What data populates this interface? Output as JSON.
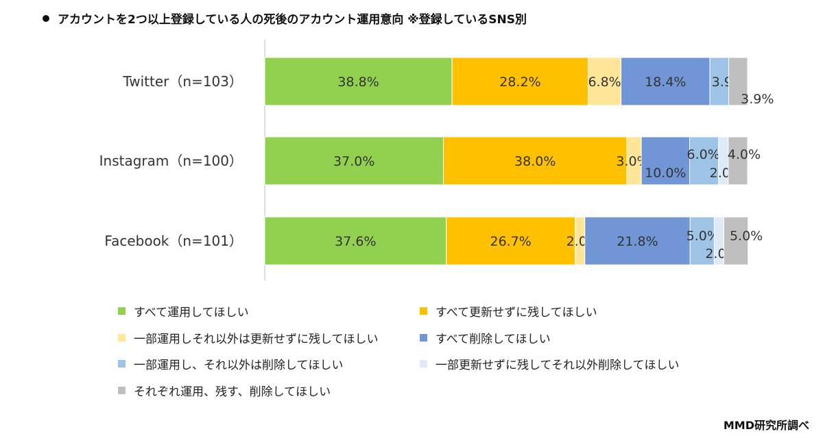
{
  "title": "アカウントを2つ以上登録している人の死後のアカウント運用意向 ※登録しているSNS別",
  "credit": "MMD研究所調べ",
  "chart_data": {
    "type": "bar",
    "orientation": "horizontal",
    "stacked": true,
    "percent": true,
    "categories": [
      "Twitter（n=103）",
      "Instagram（n=100）",
      "Facebook（n=101）"
    ],
    "series": [
      {
        "name": "すべて運用してほしい",
        "color": "#92d050",
        "values": [
          38.8,
          37.0,
          37.6
        ]
      },
      {
        "name": "すべて更新せずに残してほしい",
        "color": "#ffc000",
        "values": [
          28.2,
          38.0,
          26.7
        ]
      },
      {
        "name": "一部運用しそれ以外は更新せずに残してほしい",
        "color": "#ffe699",
        "values": [
          6.8,
          3.0,
          2.0
        ]
      },
      {
        "name": "すべて削除してほしい",
        "color": "#7096d6",
        "values": [
          18.4,
          10.0,
          21.8
        ]
      },
      {
        "name": "一部運用し、それ以外は削除してほしい",
        "color": "#9dc3e6",
        "values": [
          3.9,
          6.0,
          5.0
        ]
      },
      {
        "name": "一部更新せずに残してそれ以外削除してほしい",
        "color": "#deebf7",
        "values": [
          0,
          2.0,
          2.0
        ]
      },
      {
        "name": "それぞれ運用、残す、削除してほしい",
        "color": "#bfbfbf",
        "values": [
          3.9,
          4.0,
          5.0
        ]
      }
    ],
    "data_labels": [
      [
        "38.8%",
        "28.2%",
        "6.8%",
        "18.4%",
        "3.9%",
        "",
        "3.9%"
      ],
      [
        "37.0%",
        "38.0%",
        "3.0%",
        "10.0%",
        "6.0%",
        "2.0%",
        "4.0%"
      ],
      [
        "37.6%",
        "26.7%",
        "2.0%",
        "21.8%",
        "5.0%",
        "2.0%",
        "5.0%"
      ]
    ],
    "xlim": [
      0,
      100
    ],
    "legend_position": "bottom",
    "grid": false
  }
}
